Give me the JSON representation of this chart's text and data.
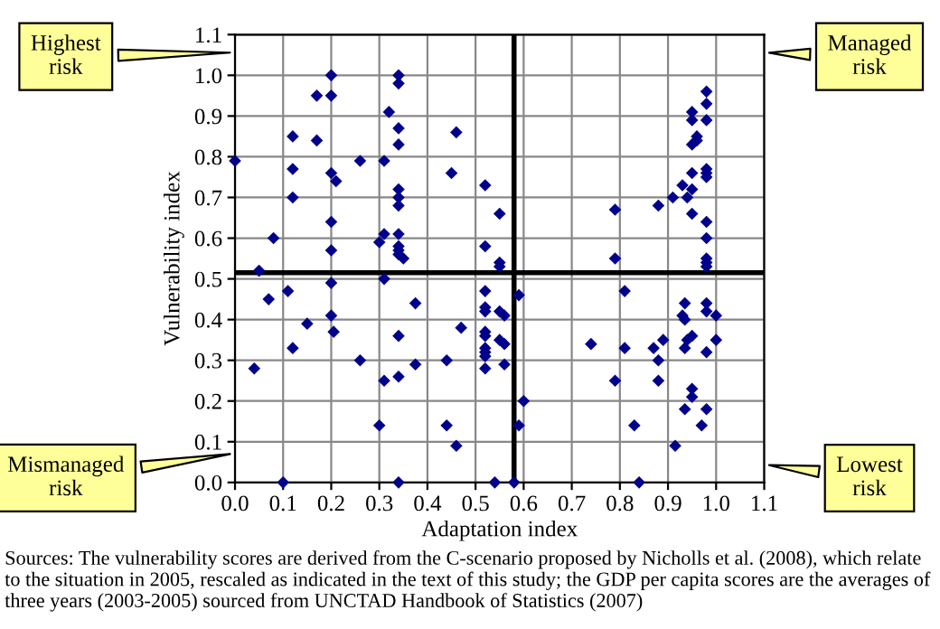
{
  "chart_data": {
    "type": "scatter",
    "xlabel": "Adaptation index",
    "ylabel": "Vulnerability index",
    "x": [
      0.0,
      0.12,
      0.12,
      0.12,
      0.08,
      0.05,
      0.17,
      0.2,
      0.2,
      0.17,
      0.2,
      0.21,
      0.2,
      0.2,
      0.26,
      0.31,
      0.32,
      0.34,
      0.34,
      0.34,
      0.34,
      0.34,
      0.34,
      0.34,
      0.34,
      0.31,
      0.3,
      0.34,
      0.34,
      0.34,
      0.35,
      0.46,
      0.45,
      0.52,
      0.55,
      0.52,
      0.55,
      0.55,
      0.79,
      0.79,
      0.88,
      0.91,
      0.93,
      0.94,
      0.95,
      0.95,
      0.98,
      0.98,
      0.98,
      0.95,
      0.98,
      0.98,
      0.98,
      0.98,
      0.98,
      0.98,
      0.98,
      0.95,
      0.95,
      0.98,
      0.96,
      0.96,
      0.95,
      0.04,
      0.07,
      0.11,
      0.12,
      0.15,
      0.2,
      0.2,
      0.205,
      0.26,
      0.31,
      0.3,
      0.31,
      0.34,
      0.34,
      0.375,
      0.375,
      0.1,
      0.34,
      0.52,
      0.52,
      0.52,
      0.55,
      0.56,
      0.59,
      0.47,
      0.52,
      0.52,
      0.52,
      0.52,
      0.52,
      0.52,
      0.55,
      0.56,
      0.56,
      0.44,
      0.44,
      0.46,
      0.54,
      0.58,
      0.6,
      0.59,
      0.74,
      0.79,
      0.81,
      0.81,
      0.83,
      0.84,
      0.87,
      0.89,
      0.88,
      0.88,
      0.915,
      0.935,
      0.93,
      0.935,
      0.95,
      0.94,
      0.935,
      0.98,
      0.98,
      1.0,
      1.0,
      0.98,
      0.95,
      0.95,
      0.935,
      0.98,
      0.97
    ],
    "values": [
      0.79,
      0.85,
      0.77,
      0.7,
      0.6,
      0.52,
      0.95,
      0.95,
      1.0,
      0.84,
      0.76,
      0.74,
      0.64,
      0.57,
      0.79,
      0.79,
      0.91,
      1.0,
      0.98,
      0.87,
      0.83,
      0.72,
      0.7,
      0.68,
      0.61,
      0.61,
      0.59,
      0.58,
      0.57,
      0.56,
      0.55,
      0.86,
      0.76,
      0.73,
      0.66,
      0.58,
      0.54,
      0.53,
      0.67,
      0.55,
      0.68,
      0.7,
      0.73,
      0.7,
      0.76,
      0.72,
      0.77,
      0.76,
      0.75,
      0.66,
      0.64,
      0.6,
      0.55,
      0.54,
      0.53,
      0.96,
      0.93,
      0.91,
      0.89,
      0.89,
      0.85,
      0.84,
      0.83,
      0.28,
      0.45,
      0.47,
      0.33,
      0.39,
      0.49,
      0.41,
      0.37,
      0.3,
      0.5,
      0.14,
      0.25,
      0.26,
      0.36,
      0.44,
      0.29,
      0.0,
      0.0,
      0.47,
      0.43,
      0.42,
      0.42,
      0.41,
      0.46,
      0.38,
      0.37,
      0.36,
      0.33,
      0.32,
      0.31,
      0.28,
      0.35,
      0.34,
      0.29,
      0.3,
      0.14,
      0.09,
      0.0,
      0.0,
      0.2,
      0.14,
      0.34,
      0.25,
      0.47,
      0.33,
      0.14,
      0.0,
      0.33,
      0.35,
      0.3,
      0.25,
      0.09,
      0.44,
      0.41,
      0.4,
      0.36,
      0.35,
      0.33,
      0.44,
      0.42,
      0.41,
      0.35,
      0.32,
      0.23,
      0.21,
      0.18,
      0.18,
      0.14
    ],
    "color": "#00008b",
    "marker": "diamond",
    "grid": true,
    "legend": false,
    "xlim": [
      0,
      1.1
    ],
    "ylim": [
      0,
      1.1
    ],
    "xticks": [
      {
        "value": 0,
        "label": "0.0"
      },
      {
        "value": 0.1,
        "label": "0.1"
      },
      {
        "value": 0.2,
        "label": "0.2"
      },
      {
        "value": 0.3,
        "label": "0.3"
      },
      {
        "value": 0.4,
        "label": "0.4"
      },
      {
        "value": 0.5,
        "label": "0.5"
      },
      {
        "value": 0.6,
        "label": "0.6"
      },
      {
        "value": 0.7,
        "label": "0.7"
      },
      {
        "value": 0.8,
        "label": "0.8"
      },
      {
        "value": 0.9,
        "label": "0.9"
      },
      {
        "value": 1.0,
        "label": "1.0"
      },
      {
        "value": 1.1,
        "label": "1.1"
      }
    ],
    "yticks": [
      {
        "value": 0,
        "label": "0.0"
      },
      {
        "value": 0.1,
        "label": "0.1"
      },
      {
        "value": 0.2,
        "label": "0.2"
      },
      {
        "value": 0.3,
        "label": "0.3"
      },
      {
        "value": 0.4,
        "label": "0.4"
      },
      {
        "value": 0.5,
        "label": "0.5"
      },
      {
        "value": 0.6,
        "label": "0.6"
      },
      {
        "value": 0.7,
        "label": "0.7"
      },
      {
        "value": 0.8,
        "label": "0.8"
      },
      {
        "value": 0.9,
        "label": "0.9"
      },
      {
        "value": 1.0,
        "label": "1.0"
      },
      {
        "value": 1.1,
        "label": "1.1"
      }
    ],
    "ref_lines": [
      {
        "axis": "x",
        "value": 0.58,
        "color": "#000000"
      },
      {
        "axis": "y",
        "value": 0.515,
        "color": "#000000"
      }
    ],
    "annotations": [
      "Highest risk",
      "Managed risk",
      "Mismanaged risk",
      "Lowest risk",
      "Sources: The vulnerability scores are derived from the C-scenario proposed by Nicholls et al. (2008), which relate to the situation in 2005, rescaled as indicated in the text of this study; the GDP per capita scores are the averages of three years (2003-2005) sourced from UNCTAD Handbook of Statistics (2007)"
    ]
  }
}
